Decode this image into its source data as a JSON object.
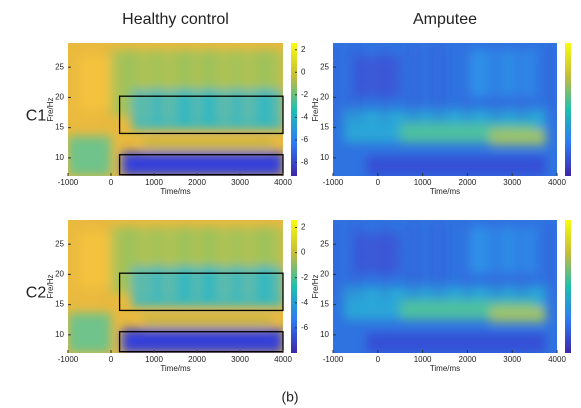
{
  "chart_data": [
    {
      "type": "heatmap",
      "title": "Healthy control",
      "row_label": "C1",
      "xlabel": "Time/ms",
      "ylabel": "Fre/Hz",
      "xlim": [
        -1000,
        4000
      ],
      "xticks": [
        -1000,
        0,
        1000,
        2000,
        3000,
        4000
      ],
      "ylim": [
        7,
        29
      ],
      "yticks": [
        10,
        15,
        20,
        25
      ],
      "clim": [
        -9.2,
        2.6
      ],
      "cticks": [
        2,
        0,
        -2,
        -4,
        -6,
        -8
      ]
    },
    {
      "type": "heatmap",
      "title": "Amputee",
      "xlabel": "Time/ms",
      "ylabel": "Fre/Hz",
      "xlim": [
        -1000,
        4000
      ],
      "xticks": [
        -1000,
        0,
        1000,
        2000,
        3000,
        4000
      ],
      "ylim": [
        7,
        29
      ],
      "yticks": [
        10,
        15,
        20,
        25
      ]
    },
    {
      "type": "heatmap",
      "row_label": "C2",
      "xlabel": "Time/ms",
      "ylabel": "Fre/Hz",
      "xlim": [
        -1000,
        4000
      ],
      "xticks": [
        -1000,
        0,
        1000,
        2000,
        3000,
        4000
      ],
      "ylim": [
        7,
        29
      ],
      "yticks": [
        10,
        15,
        20,
        25
      ],
      "clim": [
        -8,
        2.6
      ],
      "cticks": [
        2,
        0,
        -2,
        -4,
        -6
      ]
    },
    {
      "type": "heatmap",
      "xlabel": "Time/ms",
      "ylabel": "Fre/Hz",
      "xlim": [
        -1000,
        4000
      ],
      "xticks": [
        -1000,
        0,
        1000,
        2000,
        3000,
        4000
      ],
      "ylim": [
        7,
        29
      ],
      "yticks": [
        10,
        15,
        20,
        25
      ]
    }
  ],
  "caption": "(b)"
}
